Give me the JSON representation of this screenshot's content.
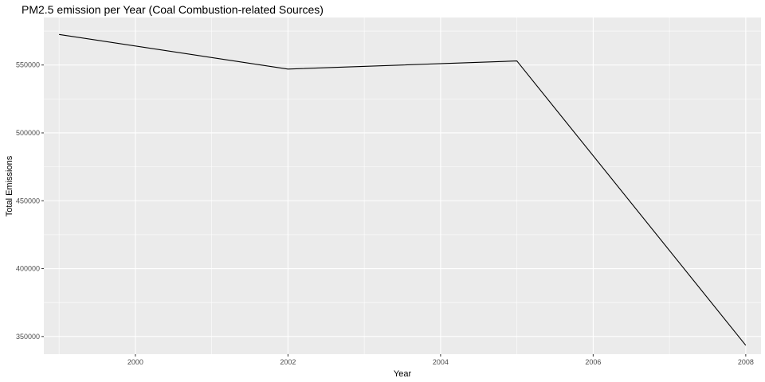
{
  "chart_data": {
    "type": "line",
    "title": "PM2.5 emission per Year (Coal Combustion-related Sources)",
    "xlabel": "Year",
    "ylabel": "Total Emissions",
    "x": [
      1999,
      2002,
      2005,
      2008
    ],
    "series": [
      {
        "values": [
          572500,
          547000,
          553000,
          343500
        ],
        "color": "#000000"
      }
    ],
    "xlim": [
      1998.8,
      2008.2
    ],
    "ylim": [
      337000,
      585000
    ],
    "x_ticks": [
      2000,
      2002,
      2004,
      2006,
      2008
    ],
    "x_tick_labels": [
      "2000",
      "2002",
      "2004",
      "2006",
      "2008"
    ],
    "x_minor_ticks": [
      1999,
      2001,
      2003,
      2005,
      2007
    ],
    "y_ticks": [
      350000,
      400000,
      450000,
      500000,
      550000
    ],
    "y_tick_labels": [
      "350000",
      "400000",
      "450000",
      "500000",
      "550000"
    ],
    "y_minor_ticks": [
      375000,
      425000,
      475000,
      525000,
      575000
    ],
    "grid": true,
    "legend": "none",
    "panel_background": "#ebebeb",
    "grid_color": "#ffffff"
  }
}
